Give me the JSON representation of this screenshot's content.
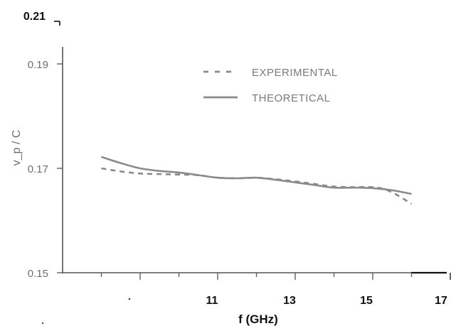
{
  "chart_data": {
    "type": "line",
    "xlabel": "f  (GHz)",
    "ylabel": "v_p / C",
    "xlim": [
      7,
      17
    ],
    "ylim": [
      0.15,
      0.21
    ],
    "x_ticks": [
      "11",
      "13",
      "15",
      "17"
    ],
    "y_ticks": [
      "0.15",
      "0.17",
      "0.19"
    ],
    "y_top_label": "0.21",
    "legend_position": "top-right",
    "grid": false,
    "series": [
      {
        "name": "EXPERIMENTAL",
        "style": "dashed",
        "color": "#8a8a8a",
        "x": [
          8.0,
          8.5,
          9.0,
          9.5,
          10.0,
          10.5,
          11.0,
          11.5,
          12.0,
          12.5,
          13.0,
          13.5,
          14.0,
          14.5,
          15.0,
          15.3,
          15.6,
          16.0
        ],
        "y": [
          0.17,
          0.1694,
          0.169,
          0.1689,
          0.1688,
          0.1687,
          0.1682,
          0.1681,
          0.1682,
          0.1679,
          0.1675,
          0.167,
          0.1665,
          0.1664,
          0.1664,
          0.166,
          0.165,
          0.1632
        ]
      },
      {
        "name": "THEORETICAL",
        "style": "solid",
        "color": "#8a8a8a",
        "x": [
          8.0,
          8.5,
          9.0,
          9.5,
          10.0,
          10.5,
          11.0,
          11.5,
          12.0,
          12.5,
          13.0,
          13.5,
          14.0,
          14.5,
          15.0,
          15.5,
          16.0
        ],
        "y": [
          0.1722,
          0.171,
          0.17,
          0.1695,
          0.1692,
          0.1687,
          0.1682,
          0.1681,
          0.1682,
          0.1678,
          0.1673,
          0.1668,
          0.1663,
          0.1663,
          0.1662,
          0.1658,
          0.1651
        ]
      }
    ]
  }
}
